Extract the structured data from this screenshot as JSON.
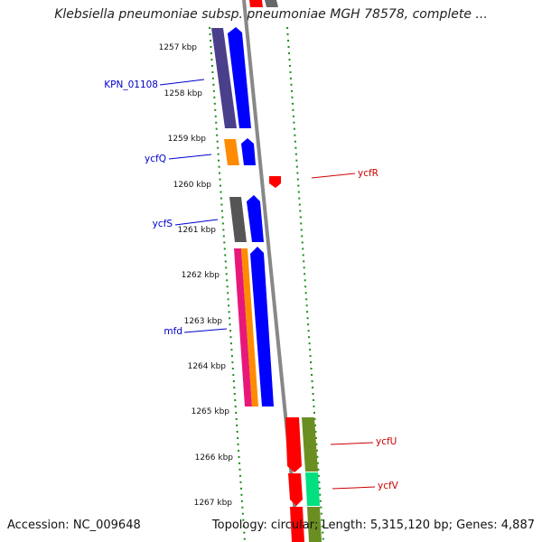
{
  "title": "Klebsiella pneumoniae subsp. pneumoniae MGH 78578, complete ...",
  "footer": {
    "accession": "Accession: NC_009648",
    "topology": "Topology: circular; Length: 5,315,120 bp; Genes: 4,887"
  },
  "ruler": {
    "ticks": [
      "1257 kbp",
      "1258 kbp",
      "1259 kbp",
      "1260 kbp",
      "1261 kbp",
      "1262 kbp",
      "1263 kbp",
      "1264 kbp",
      "1265 kbp",
      "1266 kbp",
      "1267 kbp"
    ]
  },
  "genes_left": [
    {
      "label": "KPN_01108",
      "color": "#0000cc"
    },
    {
      "label": "ycfQ",
      "color": "#0000cc"
    },
    {
      "label": "ycfS",
      "color": "#0000cc"
    },
    {
      "label": "mfd",
      "color": "#0000cc"
    }
  ],
  "genes_right": [
    {
      "label": "ycfR",
      "color": "#cc0000"
    },
    {
      "label": "ycfU",
      "color": "#cc0000"
    },
    {
      "label": "ycfV",
      "color": "#cc0000"
    }
  ],
  "colors": {
    "forward_strand": "#0000ff",
    "reverse_strand": "#ff0000",
    "backbone": "#888888",
    "dotted_track": "#1a8c1a",
    "cog_purple": "#4a3f8a",
    "cog_orange": "#ff8c00",
    "cog_gray": "#555555",
    "cog_magenta": "#e8187a",
    "cog_olive": "#6b8e23",
    "cog_spring": "#00e080"
  }
}
